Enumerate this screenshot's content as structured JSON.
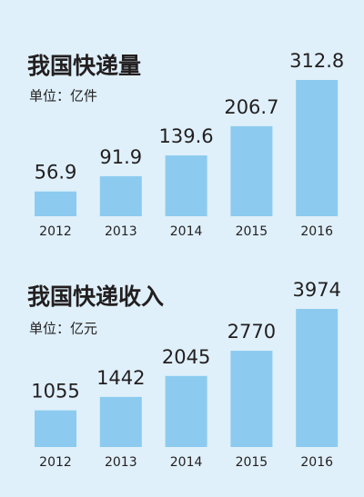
{
  "chart_data": [
    {
      "type": "bar",
      "title": "我国快递量",
      "subtitle": "单位：亿件",
      "categories": [
        "2012",
        "2013",
        "2014",
        "2015",
        "2016"
      ],
      "values": [
        56.9,
        91.9,
        139.6,
        206.7,
        312.8
      ],
      "color": "#8ccbef"
    },
    {
      "type": "bar",
      "title": "我国快递收入",
      "subtitle": "单位：亿元",
      "categories": [
        "2012",
        "2013",
        "2014",
        "2015",
        "2016"
      ],
      "values": [
        1055,
        1442,
        2045,
        2770,
        3974
      ],
      "color": "#8ccbef"
    }
  ]
}
